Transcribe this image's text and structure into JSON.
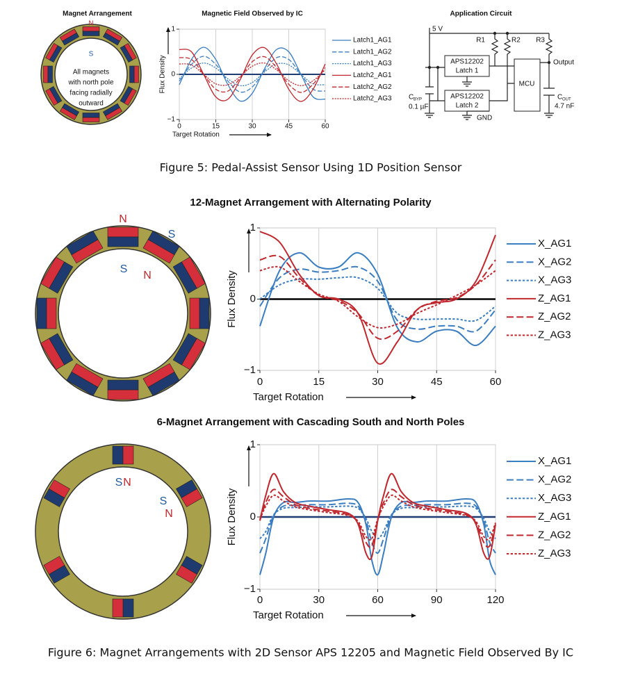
{
  "figure5": {
    "magnet_panel": {
      "title": "Magnet Arrangement",
      "north": "N",
      "south": "S",
      "note": [
        "All magnets",
        "with north pole",
        "facing radially",
        "outward"
      ]
    },
    "circuit": {
      "title": "Application Circuit",
      "supply": "5 V",
      "r1": "R1",
      "r2": "R2",
      "r3": "R3",
      "output": "Output",
      "latch1": [
        "APS12202",
        "Latch 1"
      ],
      "latch2": [
        "APS12202",
        "Latch 2"
      ],
      "mcu": "MCU",
      "cbyp": {
        "symbol": "C",
        "sub": "BYP",
        "value": "0.1 µF"
      },
      "cout": {
        "symbol": "C",
        "sub": "OUT",
        "value": "4.7 nF"
      },
      "gnd": "GND"
    },
    "caption": "Figure 5: Pedal-Assist Sensor Using 1D Position Sensor"
  },
  "figure6": {
    "panel1": {
      "north": "N",
      "south": "S",
      "inner_south": "S",
      "inner_north": "N"
    },
    "panel2": {
      "inner_south": "S",
      "inner_north": "N",
      "side_south": "S",
      "side_north": "N"
    },
    "caption": "Figure 6: Magnet Arrangements with 2D Sensor APS 12205 and Magnetic Field Observed By IC"
  },
  "chart_data": [
    {
      "type": "line",
      "title": "Magnetic Field Observed by IC",
      "x_label": "Target Rotation",
      "y_label": "Flux Density",
      "x": [
        0,
        5,
        10,
        15,
        20,
        25,
        30,
        35,
        40,
        45,
        50,
        55,
        60
      ],
      "xlim": [
        0,
        60
      ],
      "xticks": [
        0,
        15,
        30,
        45,
        60
      ],
      "ylim": [
        -1,
        1
      ],
      "yticks": [
        {
          "value": -1,
          "label": "−1"
        },
        0,
        1
      ],
      "grid": "x",
      "legend": "right",
      "zero_line_color": "#1f3b73",
      "series": [
        {
          "name": "Latch1_AG1",
          "color": "#3a7dc0",
          "dash": "solid",
          "values": [
            -0.23,
            0.33,
            0.6,
            0.33,
            -0.23,
            -0.59,
            -0.42,
            0.12,
            0.55,
            0.5,
            0,
            -0.5,
            -0.55
          ]
        },
        {
          "name": "Latch1_AG2",
          "color": "#3a7dc0",
          "dash": "dashed",
          "values": [
            -0.15,
            0.22,
            0.4,
            0.22,
            -0.15,
            -0.39,
            -0.28,
            0.08,
            0.37,
            0.33,
            0,
            -0.33,
            -0.37
          ]
        },
        {
          "name": "Latch1_AG3",
          "color": "#3a7dc0",
          "dash": "dotted",
          "values": [
            -0.1,
            0.14,
            0.25,
            0.14,
            -0.1,
            -0.25,
            -0.18,
            0.05,
            0.23,
            0.21,
            0,
            -0.21,
            -0.23
          ]
        },
        {
          "name": "Latch2_AG1",
          "color": "#c0272d",
          "dash": "solid",
          "values": [
            0.55,
            0.5,
            0,
            -0.5,
            -0.55,
            -0.12,
            0.43,
            0.59,
            0.23,
            -0.33,
            -0.6,
            -0.33,
            0.23
          ]
        },
        {
          "name": "Latch2_AG2",
          "color": "#c0272d",
          "dash": "dashed",
          "values": [
            0.37,
            0.33,
            0,
            -0.33,
            -0.37,
            -0.08,
            0.28,
            0.39,
            0.15,
            -0.22,
            -0.4,
            -0.22,
            0.15
          ]
        },
        {
          "name": "Latch2_AG3",
          "color": "#c0272d",
          "dash": "dotted",
          "values": [
            0.23,
            0.21,
            0,
            -0.21,
            -0.23,
            -0.05,
            0.18,
            0.25,
            0.1,
            -0.14,
            -0.25,
            -0.14,
            0.1
          ]
        }
      ]
    },
    {
      "type": "line",
      "title": "12-Magnet Arrangement with Alternating Polarity",
      "x_label": "Target Rotation",
      "y_label": "Flux Density",
      "x": [
        0,
        5,
        10,
        15,
        20,
        25,
        30,
        35,
        40,
        45,
        50,
        55,
        60
      ],
      "xlim": [
        0,
        60
      ],
      "xticks": [
        0,
        15,
        30,
        45,
        60
      ],
      "ylim": [
        -1,
        1
      ],
      "yticks": [
        {
          "value": -1,
          "label": "−1"
        },
        0,
        1
      ],
      "grid": "x",
      "legend": "right",
      "zero_line_color": "#000000",
      "series": [
        {
          "name": "X_AG1",
          "color": "#3a7dc0",
          "dash": "solid",
          "values": [
            -0.38,
            0.4,
            0.65,
            0.45,
            0.45,
            0.65,
            0.35,
            -0.4,
            -0.6,
            -0.45,
            -0.45,
            -0.65,
            -0.38
          ]
        },
        {
          "name": "X_AG2",
          "color": "#3a7dc0",
          "dash": "dashed",
          "values": [
            -0.1,
            0.3,
            0.42,
            0.38,
            0.4,
            0.45,
            0.25,
            -0.3,
            -0.42,
            -0.38,
            -0.38,
            -0.45,
            -0.15
          ]
        },
        {
          "name": "X_AG3",
          "color": "#3a7dc0",
          "dash": "dotted",
          "values": [
            0,
            0.2,
            0.28,
            0.28,
            0.3,
            0.3,
            0.15,
            -0.2,
            -0.28,
            -0.28,
            -0.28,
            -0.3,
            -0.1
          ]
        },
        {
          "name": "Z_AG1",
          "color": "#c0272d",
          "dash": "solid",
          "values": [
            0.95,
            0.8,
            0.35,
            0.05,
            0,
            -0.2,
            -0.9,
            -0.6,
            -0.15,
            -0.05,
            0,
            0.25,
            0.9
          ]
        },
        {
          "name": "Z_AG2",
          "color": "#c0272d",
          "dash": "dashed",
          "values": [
            0.55,
            0.6,
            0.3,
            0.05,
            -0.02,
            -0.2,
            -0.55,
            -0.45,
            -0.15,
            -0.03,
            0.02,
            0.2,
            0.55
          ]
        },
        {
          "name": "Z_AG3",
          "color": "#c0272d",
          "dash": "dotted",
          "values": [
            0.4,
            0.45,
            0.25,
            0.07,
            -0.03,
            -0.25,
            -0.4,
            -0.35,
            -0.2,
            -0.08,
            0.05,
            0.2,
            0.4
          ]
        }
      ]
    },
    {
      "type": "line",
      "title": "6-Magnet Arrangement with Cascading South and North Poles",
      "x_label": "Target Rotation",
      "y_label": "Flux Density",
      "x": [
        0,
        3,
        7,
        12,
        18,
        25,
        35,
        45,
        50,
        54,
        57,
        60,
        63,
        67,
        72,
        78,
        85,
        95,
        105,
        110,
        114,
        117,
        120
      ],
      "xlim": [
        0,
        120
      ],
      "xticks": [
        0,
        30,
        60,
        90,
        120
      ],
      "ylim": [
        -1,
        1
      ],
      "yticks": [
        {
          "value": -1,
          "label": "−1"
        },
        0,
        1
      ],
      "grid": "x",
      "legend": "right",
      "zero_line_color": "#1f3b73",
      "series": [
        {
          "name": "X_AG1",
          "color": "#3a7dc0",
          "dash": "solid",
          "values": [
            -0.8,
            -0.5,
            0,
            0.2,
            0.2,
            0.22,
            0.22,
            0.25,
            0.2,
            -0.1,
            -0.6,
            -0.8,
            -0.5,
            0,
            0.2,
            0.2,
            0.22,
            0.22,
            0.25,
            0.2,
            -0.1,
            -0.6,
            -0.8
          ]
        },
        {
          "name": "X_AG2",
          "color": "#3a7dc0",
          "dash": "dashed",
          "values": [
            -0.5,
            -0.3,
            0.02,
            0.15,
            0.16,
            0.17,
            0.17,
            0.19,
            0.15,
            -0.05,
            -0.35,
            -0.5,
            -0.3,
            0.02,
            0.15,
            0.16,
            0.17,
            0.17,
            0.19,
            0.15,
            -0.05,
            -0.35,
            -0.5
          ]
        },
        {
          "name": "X_AG3",
          "color": "#3a7dc0",
          "dash": "dotted",
          "values": [
            -0.3,
            -0.2,
            0.03,
            0.12,
            0.13,
            0.14,
            0.14,
            0.15,
            0.12,
            -0.02,
            -0.2,
            -0.3,
            -0.2,
            0.03,
            0.12,
            0.13,
            0.14,
            0.14,
            0.15,
            0.12,
            -0.02,
            -0.2,
            -0.3
          ]
        },
        {
          "name": "Z_AG1",
          "color": "#c0272d",
          "dash": "solid",
          "values": [
            -0.05,
            0.3,
            0.6,
            0.35,
            0.2,
            0.15,
            0.1,
            0.05,
            -0.1,
            -0.5,
            -0.55,
            -0.05,
            0.3,
            0.6,
            0.35,
            0.2,
            0.15,
            0.1,
            0.05,
            -0.1,
            -0.5,
            -0.55,
            -0.1
          ]
        },
        {
          "name": "Z_AG2",
          "color": "#c0272d",
          "dash": "dashed",
          "values": [
            -0.05,
            0.2,
            0.38,
            0.28,
            0.17,
            0.12,
            0.08,
            0.03,
            -0.08,
            -0.35,
            -0.4,
            -0.05,
            0.2,
            0.38,
            0.28,
            0.17,
            0.12,
            0.08,
            0.03,
            -0.08,
            -0.35,
            -0.4,
            -0.1
          ]
        },
        {
          "name": "Z_AG3",
          "color": "#c0272d",
          "dash": "dotted",
          "values": [
            -0.03,
            0.15,
            0.3,
            0.22,
            0.14,
            0.1,
            0.06,
            0.02,
            -0.06,
            -0.27,
            -0.3,
            -0.03,
            0.15,
            0.3,
            0.22,
            0.14,
            0.1,
            0.06,
            0.02,
            -0.06,
            -0.27,
            -0.3,
            -0.08
          ]
        }
      ]
    }
  ]
}
